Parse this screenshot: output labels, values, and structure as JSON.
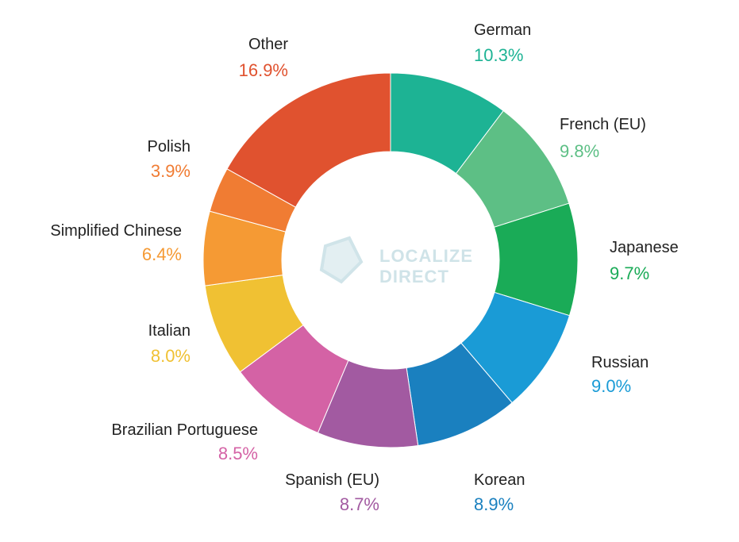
{
  "chart_data": {
    "type": "donut",
    "categories": [
      "German",
      "French (EU)",
      "Japanese",
      "Russian",
      "Korean",
      "Spanish (EU)",
      "Brazilian Portuguese",
      "Italian",
      "Simplified Chinese",
      "Polish",
      "Other"
    ],
    "values": [
      10.3,
      9.8,
      9.7,
      9.0,
      8.9,
      8.7,
      8.5,
      8.0,
      6.4,
      3.9,
      16.9
    ],
    "value_labels": [
      "10.3%",
      "9.8%",
      "9.7%",
      "9.0%",
      "8.9%",
      "8.7%",
      "8.5%",
      "8.0%",
      "6.4%",
      "3.9%",
      "16.9%"
    ],
    "colors": [
      "#1db394",
      "#5dbf85",
      "#1aab57",
      "#1a9bd6",
      "#1a80bf",
      "#a25aa1",
      "#d462a5",
      "#f0c133",
      "#f59a34",
      "#f07c33",
      "#e0522f"
    ],
    "watermark": [
      "LOCALIZE",
      "DIRECT"
    ]
  }
}
